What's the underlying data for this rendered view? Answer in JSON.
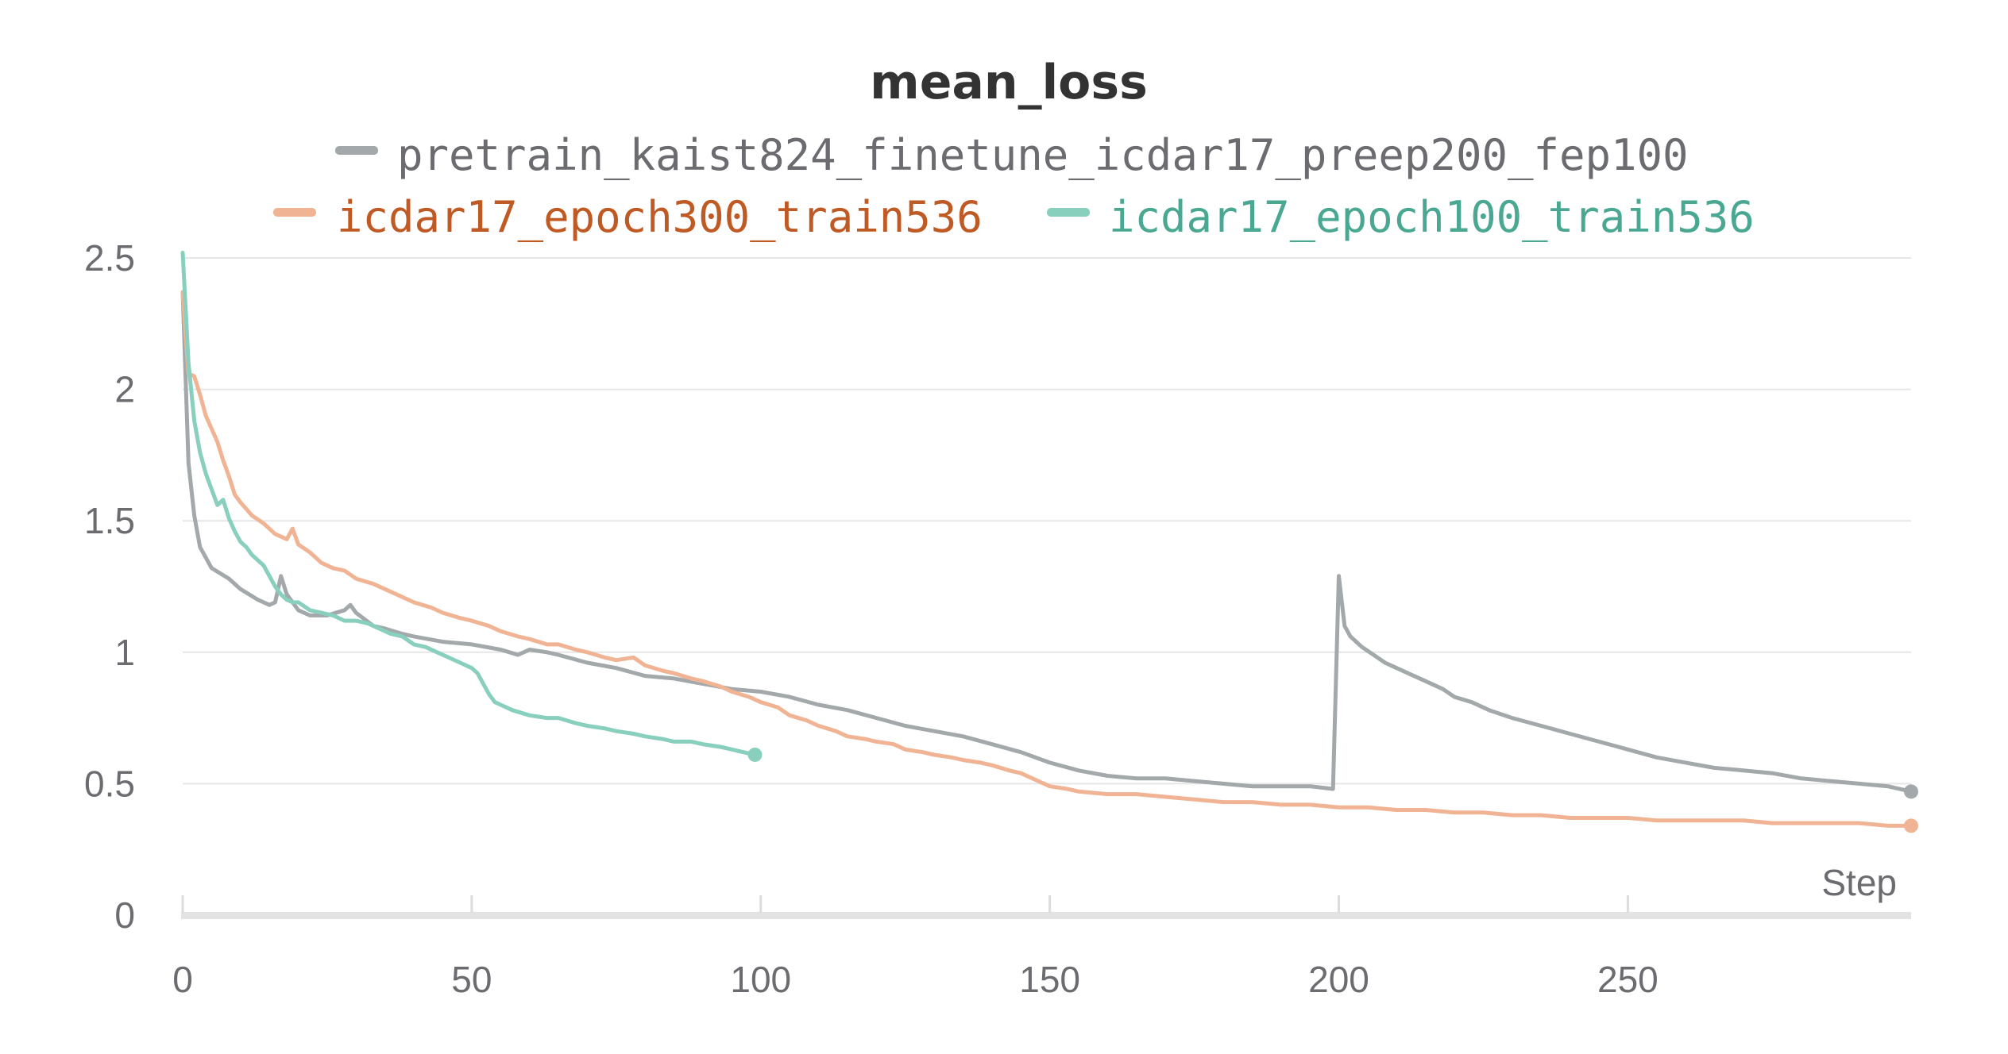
{
  "chart_data": {
    "type": "line",
    "title": "mean_loss",
    "xlabel": "Step",
    "ylabel": "",
    "xlim": [
      0,
      299
    ],
    "ylim": [
      0,
      2.5
    ],
    "x_ticks": [
      0,
      50,
      100,
      150,
      200,
      250
    ],
    "y_ticks": [
      0,
      0.5,
      1,
      1.5,
      2,
      2.5
    ],
    "x_tick_labels": [
      "0",
      "50",
      "100",
      "150",
      "200",
      "250"
    ],
    "y_tick_labels": [
      "0",
      "0.5",
      "1",
      "1.5",
      "2",
      "2.5"
    ],
    "grid": true,
    "legend_position": "top",
    "series": [
      {
        "name": "pretrain_kaist824_finetune_icdar17_preep200_fep100",
        "color": "#a3a8ab",
        "points": [
          [
            0,
            2.37
          ],
          [
            1,
            1.72
          ],
          [
            2,
            1.52
          ],
          [
            3,
            1.4
          ],
          [
            5,
            1.32
          ],
          [
            8,
            1.28
          ],
          [
            10,
            1.24
          ],
          [
            13,
            1.2
          ],
          [
            15,
            1.18
          ],
          [
            16,
            1.19
          ],
          [
            17,
            1.29
          ],
          [
            18,
            1.22
          ],
          [
            20,
            1.16
          ],
          [
            22,
            1.14
          ],
          [
            25,
            1.14
          ],
          [
            28,
            1.16
          ],
          [
            29,
            1.18
          ],
          [
            30,
            1.15
          ],
          [
            33,
            1.1
          ],
          [
            35,
            1.09
          ],
          [
            38,
            1.07
          ],
          [
            40,
            1.06
          ],
          [
            45,
            1.04
          ],
          [
            50,
            1.03
          ],
          [
            55,
            1.01
          ],
          [
            58,
            0.99
          ],
          [
            60,
            1.01
          ],
          [
            63,
            1.0
          ],
          [
            65,
            0.99
          ],
          [
            70,
            0.96
          ],
          [
            75,
            0.94
          ],
          [
            80,
            0.91
          ],
          [
            85,
            0.9
          ],
          [
            90,
            0.88
          ],
          [
            95,
            0.86
          ],
          [
            100,
            0.85
          ],
          [
            105,
            0.83
          ],
          [
            110,
            0.8
          ],
          [
            115,
            0.78
          ],
          [
            120,
            0.75
          ],
          [
            125,
            0.72
          ],
          [
            130,
            0.7
          ],
          [
            135,
            0.68
          ],
          [
            140,
            0.65
          ],
          [
            145,
            0.62
          ],
          [
            150,
            0.58
          ],
          [
            155,
            0.55
          ],
          [
            160,
            0.53
          ],
          [
            165,
            0.52
          ],
          [
            170,
            0.52
          ],
          [
            175,
            0.51
          ],
          [
            180,
            0.5
          ],
          [
            185,
            0.49
          ],
          [
            190,
            0.49
          ],
          [
            195,
            0.49
          ],
          [
            199,
            0.48
          ],
          [
            200,
            1.29
          ],
          [
            201,
            1.1
          ],
          [
            202,
            1.06
          ],
          [
            204,
            1.02
          ],
          [
            206,
            0.99
          ],
          [
            208,
            0.96
          ],
          [
            210,
            0.94
          ],
          [
            212,
            0.92
          ],
          [
            215,
            0.89
          ],
          [
            218,
            0.86
          ],
          [
            220,
            0.83
          ],
          [
            223,
            0.81
          ],
          [
            226,
            0.78
          ],
          [
            230,
            0.75
          ],
          [
            235,
            0.72
          ],
          [
            240,
            0.69
          ],
          [
            245,
            0.66
          ],
          [
            250,
            0.63
          ],
          [
            255,
            0.6
          ],
          [
            260,
            0.58
          ],
          [
            265,
            0.56
          ],
          [
            270,
            0.55
          ],
          [
            275,
            0.54
          ],
          [
            280,
            0.52
          ],
          [
            285,
            0.51
          ],
          [
            290,
            0.5
          ],
          [
            295,
            0.49
          ],
          [
            299,
            0.47
          ]
        ]
      },
      {
        "name": "icdar17_epoch300_train536",
        "color": "#f0b494",
        "label_color": "#c05a24",
        "points": [
          [
            0,
            2.37
          ],
          [
            1,
            2.06
          ],
          [
            2,
            2.05
          ],
          [
            3,
            1.98
          ],
          [
            4,
            1.9
          ],
          [
            5,
            1.85
          ],
          [
            6,
            1.8
          ],
          [
            7,
            1.73
          ],
          [
            8,
            1.67
          ],
          [
            9,
            1.6
          ],
          [
            10,
            1.57
          ],
          [
            12,
            1.52
          ],
          [
            14,
            1.49
          ],
          [
            16,
            1.45
          ],
          [
            18,
            1.43
          ],
          [
            19,
            1.47
          ],
          [
            20,
            1.41
          ],
          [
            22,
            1.38
          ],
          [
            24,
            1.34
          ],
          [
            26,
            1.32
          ],
          [
            28,
            1.31
          ],
          [
            30,
            1.28
          ],
          [
            33,
            1.26
          ],
          [
            35,
            1.24
          ],
          [
            38,
            1.21
          ],
          [
            40,
            1.19
          ],
          [
            43,
            1.17
          ],
          [
            45,
            1.15
          ],
          [
            48,
            1.13
          ],
          [
            50,
            1.12
          ],
          [
            53,
            1.1
          ],
          [
            55,
            1.08
          ],
          [
            58,
            1.06
          ],
          [
            60,
            1.05
          ],
          [
            63,
            1.03
          ],
          [
            65,
            1.03
          ],
          [
            68,
            1.01
          ],
          [
            70,
            1.0
          ],
          [
            73,
            0.98
          ],
          [
            75,
            0.97
          ],
          [
            78,
            0.98
          ],
          [
            80,
            0.95
          ],
          [
            83,
            0.93
          ],
          [
            85,
            0.92
          ],
          [
            88,
            0.9
          ],
          [
            90,
            0.89
          ],
          [
            93,
            0.87
          ],
          [
            95,
            0.85
          ],
          [
            98,
            0.83
          ],
          [
            100,
            0.81
          ],
          [
            103,
            0.79
          ],
          [
            105,
            0.76
          ],
          [
            108,
            0.74
          ],
          [
            110,
            0.72
          ],
          [
            113,
            0.7
          ],
          [
            115,
            0.68
          ],
          [
            118,
            0.67
          ],
          [
            120,
            0.66
          ],
          [
            123,
            0.65
          ],
          [
            125,
            0.63
          ],
          [
            128,
            0.62
          ],
          [
            130,
            0.61
          ],
          [
            133,
            0.6
          ],
          [
            135,
            0.59
          ],
          [
            138,
            0.58
          ],
          [
            140,
            0.57
          ],
          [
            143,
            0.55
          ],
          [
            145,
            0.54
          ],
          [
            148,
            0.51
          ],
          [
            150,
            0.49
          ],
          [
            153,
            0.48
          ],
          [
            155,
            0.47
          ],
          [
            160,
            0.46
          ],
          [
            165,
            0.46
          ],
          [
            170,
            0.45
          ],
          [
            175,
            0.44
          ],
          [
            180,
            0.43
          ],
          [
            185,
            0.43
          ],
          [
            190,
            0.42
          ],
          [
            195,
            0.42
          ],
          [
            200,
            0.41
          ],
          [
            205,
            0.41
          ],
          [
            210,
            0.4
          ],
          [
            215,
            0.4
          ],
          [
            220,
            0.39
          ],
          [
            225,
            0.39
          ],
          [
            230,
            0.38
          ],
          [
            235,
            0.38
          ],
          [
            240,
            0.37
          ],
          [
            245,
            0.37
          ],
          [
            250,
            0.37
          ],
          [
            255,
            0.36
          ],
          [
            260,
            0.36
          ],
          [
            265,
            0.36
          ],
          [
            270,
            0.36
          ],
          [
            275,
            0.35
          ],
          [
            280,
            0.35
          ],
          [
            285,
            0.35
          ],
          [
            290,
            0.35
          ],
          [
            295,
            0.34
          ],
          [
            299,
            0.34
          ]
        ]
      },
      {
        "name": "icdar17_epoch100_train536",
        "color": "#88cfbe",
        "label_color": "#4aa892",
        "points": [
          [
            0,
            2.52
          ],
          [
            1,
            2.1
          ],
          [
            2,
            1.88
          ],
          [
            3,
            1.76
          ],
          [
            4,
            1.68
          ],
          [
            5,
            1.62
          ],
          [
            6,
            1.56
          ],
          [
            7,
            1.58
          ],
          [
            8,
            1.51
          ],
          [
            9,
            1.46
          ],
          [
            10,
            1.42
          ],
          [
            11,
            1.4
          ],
          [
            12,
            1.37
          ],
          [
            13,
            1.35
          ],
          [
            14,
            1.33
          ],
          [
            15,
            1.29
          ],
          [
            16,
            1.25
          ],
          [
            17,
            1.22
          ],
          [
            18,
            1.2
          ],
          [
            19,
            1.19
          ],
          [
            20,
            1.19
          ],
          [
            22,
            1.16
          ],
          [
            24,
            1.15
          ],
          [
            26,
            1.14
          ],
          [
            28,
            1.12
          ],
          [
            30,
            1.12
          ],
          [
            32,
            1.11
          ],
          [
            34,
            1.09
          ],
          [
            36,
            1.07
          ],
          [
            38,
            1.06
          ],
          [
            40,
            1.03
          ],
          [
            42,
            1.02
          ],
          [
            44,
            1.0
          ],
          [
            46,
            0.98
          ],
          [
            48,
            0.96
          ],
          [
            50,
            0.94
          ],
          [
            51,
            0.92
          ],
          [
            52,
            0.88
          ],
          [
            53,
            0.84
          ],
          [
            54,
            0.81
          ],
          [
            55,
            0.8
          ],
          [
            57,
            0.78
          ],
          [
            60,
            0.76
          ],
          [
            63,
            0.75
          ],
          [
            65,
            0.75
          ],
          [
            68,
            0.73
          ],
          [
            70,
            0.72
          ],
          [
            73,
            0.71
          ],
          [
            75,
            0.7
          ],
          [
            78,
            0.69
          ],
          [
            80,
            0.68
          ],
          [
            83,
            0.67
          ],
          [
            85,
            0.66
          ],
          [
            88,
            0.66
          ],
          [
            90,
            0.65
          ],
          [
            93,
            0.64
          ],
          [
            95,
            0.63
          ],
          [
            97,
            0.62
          ],
          [
            99,
            0.61
          ]
        ]
      }
    ]
  }
}
